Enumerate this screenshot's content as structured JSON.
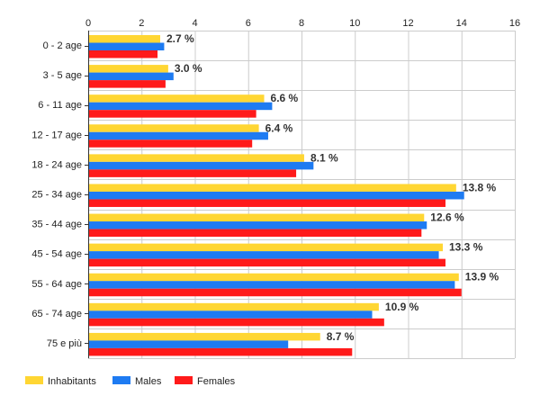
{
  "chart_data": {
    "type": "bar",
    "orientation": "horizontal",
    "categories": [
      "0 - 2 age",
      "3 - 5 age",
      "6 - 11 age",
      "12 - 17 age",
      "18 - 24 age",
      "25 - 34 age",
      "35 - 44 age",
      "45 - 54 age",
      "55 - 64 age",
      "65 - 74 age",
      "75 e più"
    ],
    "series": [
      {
        "name": "Inhabitants",
        "color": "#FFD633",
        "values": [
          2.7,
          3.0,
          6.6,
          6.4,
          8.1,
          13.8,
          12.6,
          13.3,
          13.9,
          10.9,
          8.7
        ]
      },
      {
        "name": "Males",
        "color": "#1E7BF2",
        "values": [
          2.85,
          3.2,
          6.9,
          6.75,
          8.45,
          14.1,
          12.7,
          13.15,
          13.75,
          10.65,
          7.5
        ]
      },
      {
        "name": "Females",
        "color": "#FF1A1A",
        "values": [
          2.6,
          2.9,
          6.3,
          6.15,
          7.8,
          13.4,
          12.5,
          13.4,
          14.0,
          11.1,
          9.9
        ]
      }
    ],
    "data_labels": [
      "2.7 %",
      "3.0 %",
      "6.6 %",
      "6.4 %",
      "8.1 %",
      "13.8 %",
      "12.6 %",
      "13.3 %",
      "13.9 %",
      "10.9 %",
      "8.7 %"
    ],
    "x_ticks": [
      "0",
      "2",
      "4",
      "6",
      "8",
      "10",
      "12",
      "14",
      "16"
    ],
    "xlim": [
      0,
      16
    ],
    "grid": true,
    "legend_position": "bottom-left"
  }
}
